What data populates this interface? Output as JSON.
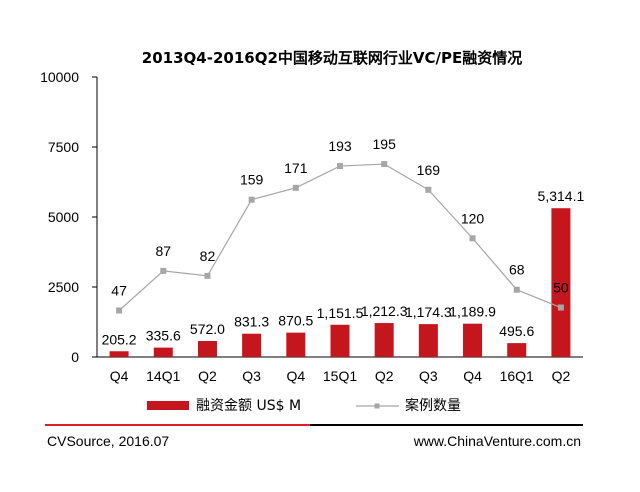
{
  "chart_data": {
    "type": "bar",
    "title": "2013Q4-2016Q2中国移动互联网行业VC/PE融资情况",
    "categories": [
      "Q4",
      "14Q1",
      "Q2",
      "Q3",
      "Q4",
      "15Q1",
      "Q2",
      "Q3",
      "Q4",
      "16Q1",
      "Q2"
    ],
    "ylim": [
      0,
      10000
    ],
    "yticks": [
      "0",
      "2500",
      "5000",
      "7500",
      "10000"
    ],
    "grid": false,
    "legend_position": "bottom",
    "series": [
      {
        "name": "融资金额 US$ M",
        "type": "bar",
        "color": "#c4161c",
        "values": [
          205.2,
          335.6,
          572.0,
          831.3,
          870.5,
          1151.5,
          1212.3,
          1174.3,
          1189.9,
          495.6,
          5314.1
        ],
        "labels": [
          "205.2",
          "335.6",
          "572.0",
          "831.3",
          "870.5",
          "1,151.5",
          "1,212.3",
          "1,174.3",
          "1,189.9",
          "495.6",
          "5,314.1"
        ]
      },
      {
        "name": "案例数量",
        "type": "line",
        "color": "#a6a6a6",
        "marker_color": "#a6a6a6",
        "values": [
          47,
          87,
          82,
          159,
          171,
          193,
          195,
          169,
          120,
          68,
          50
        ],
        "labels": [
          "47",
          "87",
          "82",
          "159",
          "171",
          "193",
          "195",
          "169",
          "120",
          "68",
          "50"
        ]
      }
    ]
  },
  "footer": {
    "source": "CVSource, 2016.07",
    "website": "www.ChinaVenture.com.cn",
    "rule_colors": [
      "#e31e24",
      "#000000"
    ]
  }
}
